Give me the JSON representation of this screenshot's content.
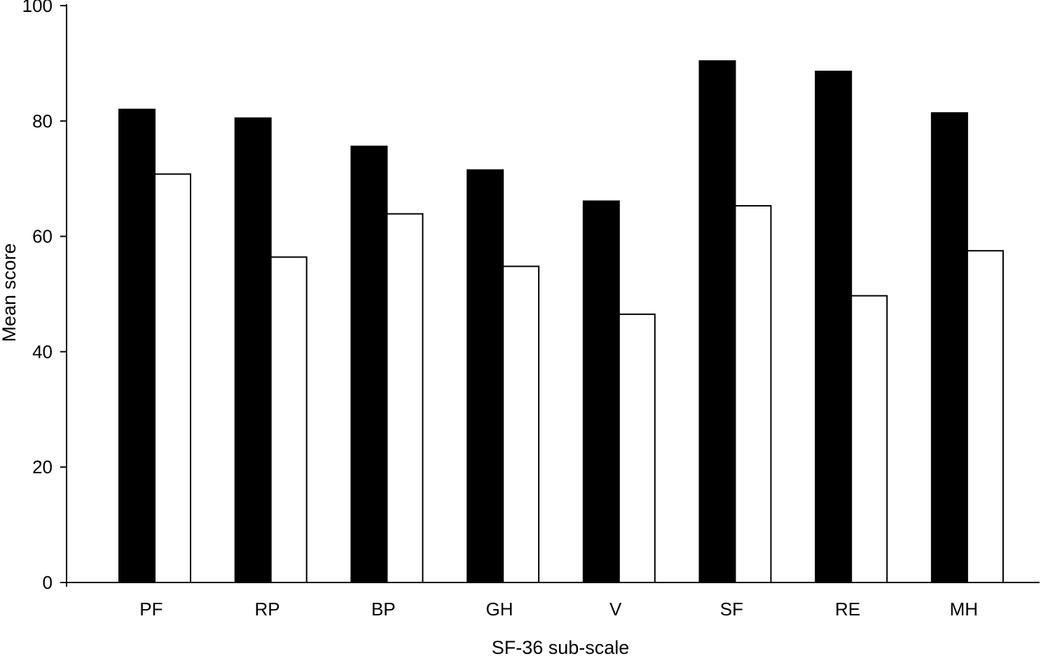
{
  "chart_data": {
    "type": "bar",
    "title": "",
    "xlabel": "SF-36 sub-scale",
    "ylabel": "Mean score",
    "ylim": [
      0,
      100
    ],
    "yticks": [
      0,
      20,
      40,
      60,
      80,
      100
    ],
    "ytick_labels": [
      "0",
      "20",
      "40",
      "60",
      "80",
      "100"
    ],
    "grid": false,
    "categories": [
      "PF",
      "RP",
      "BP",
      "GH",
      "V",
      "SF",
      "RE",
      "MH"
    ],
    "series": [
      {
        "fill": "#000000",
        "values": [
          82.0,
          80.5,
          75.6,
          71.5,
          66.1,
          90.4,
          88.6,
          81.4
        ]
      },
      {
        "fill": "#ffffff",
        "values": [
          70.8,
          56.4,
          63.9,
          54.8,
          46.5,
          65.3,
          49.7,
          57.5
        ]
      }
    ]
  }
}
